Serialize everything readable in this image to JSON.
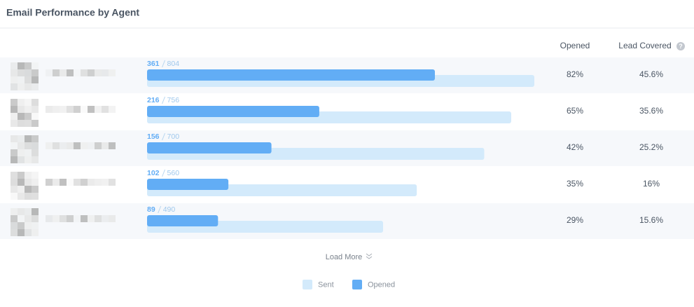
{
  "chart_data": {
    "type": "bar",
    "title": "Email Performance by Agent",
    "categories": [
      null,
      null,
      null,
      null,
      null
    ],
    "series": [
      {
        "name": "Sent",
        "color": "#d3eafb",
        "values": [
          804,
          756,
          700,
          560,
          490
        ]
      },
      {
        "name": "Opened",
        "color": "#62adf5",
        "values": [
          361,
          216,
          156,
          102,
          89
        ]
      }
    ],
    "columns": [
      {
        "header": "Opened",
        "cells": [
          "82%",
          "65%",
          "42%",
          "35%",
          "29%"
        ]
      },
      {
        "header": "Lead Covered",
        "cells": [
          "45.6%",
          "35.6%",
          "25.2%",
          "16%",
          "15.6%"
        ]
      }
    ],
    "load_more": "Load More"
  }
}
